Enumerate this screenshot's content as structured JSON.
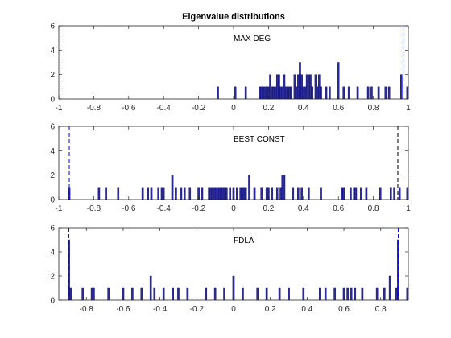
{
  "figure": {
    "title": "Eigenvalue distributions",
    "bar_color": "#2b2b9e",
    "bar_edge": "#0c0c4d",
    "vline_color_blue": "#0000ff",
    "vline_color_black": "#000000"
  },
  "chart_data": [
    {
      "type": "bar",
      "label": "MAX DEG",
      "xlim": [
        -1,
        1
      ],
      "ylim": [
        0,
        6
      ],
      "xticks": [
        -1,
        -0.8,
        -0.6,
        -0.4,
        -0.2,
        0,
        0.2,
        0.4,
        0.6,
        0.8,
        1
      ],
      "xtick_labels": [
        "-1",
        "-0.8",
        "-0.6",
        "-0.4",
        "-0.2",
        "0",
        "0.2",
        "0.4",
        "0.6",
        "0.8",
        "1"
      ],
      "yticks": [
        0,
        2,
        4,
        6
      ],
      "ytick_labels": [
        "0",
        "2",
        "4",
        "6"
      ],
      "bin_width": 0.01,
      "bars": [
        {
          "x": -0.09,
          "y": 1
        },
        {
          "x": 0.01,
          "y": 1
        },
        {
          "x": 0.07,
          "y": 1
        },
        {
          "x": 0.15,
          "y": 1
        },
        {
          "x": 0.16,
          "y": 1
        },
        {
          "x": 0.17,
          "y": 1
        },
        {
          "x": 0.18,
          "y": 1
        },
        {
          "x": 0.19,
          "y": 1
        },
        {
          "x": 0.2,
          "y": 1
        },
        {
          "x": 0.21,
          "y": 2
        },
        {
          "x": 0.22,
          "y": 1
        },
        {
          "x": 0.23,
          "y": 1
        },
        {
          "x": 0.24,
          "y": 1
        },
        {
          "x": 0.25,
          "y": 2
        },
        {
          "x": 0.26,
          "y": 2
        },
        {
          "x": 0.27,
          "y": 1
        },
        {
          "x": 0.28,
          "y": 1
        },
        {
          "x": 0.29,
          "y": 2
        },
        {
          "x": 0.3,
          "y": 1
        },
        {
          "x": 0.31,
          "y": 1
        },
        {
          "x": 0.32,
          "y": 1
        },
        {
          "x": 0.33,
          "y": 1
        },
        {
          "x": 0.35,
          "y": 2
        },
        {
          "x": 0.36,
          "y": 1
        },
        {
          "x": 0.37,
          "y": 2
        },
        {
          "x": 0.38,
          "y": 3
        },
        {
          "x": 0.39,
          "y": 2
        },
        {
          "x": 0.4,
          "y": 1
        },
        {
          "x": 0.41,
          "y": 1
        },
        {
          "x": 0.42,
          "y": 2
        },
        {
          "x": 0.43,
          "y": 2
        },
        {
          "x": 0.44,
          "y": 2
        },
        {
          "x": 0.45,
          "y": 1
        },
        {
          "x": 0.47,
          "y": 2
        },
        {
          "x": 0.48,
          "y": 1
        },
        {
          "x": 0.49,
          "y": 2
        },
        {
          "x": 0.5,
          "y": 1
        },
        {
          "x": 0.53,
          "y": 1
        },
        {
          "x": 0.55,
          "y": 1
        },
        {
          "x": 0.6,
          "y": 3
        },
        {
          "x": 0.63,
          "y": 1
        },
        {
          "x": 0.66,
          "y": 1
        },
        {
          "x": 0.71,
          "y": 1
        },
        {
          "x": 0.77,
          "y": 1
        },
        {
          "x": 0.79,
          "y": 1
        },
        {
          "x": 0.83,
          "y": 1
        },
        {
          "x": 0.87,
          "y": 1
        },
        {
          "x": 0.89,
          "y": 1
        },
        {
          "x": 0.96,
          "y": 2
        },
        {
          "x": 1.0,
          "y": 1
        }
      ],
      "vlines": [
        {
          "x": -0.97,
          "color": "blue"
        },
        {
          "x": 0.97,
          "color": "blue"
        }
      ]
    },
    {
      "type": "bar",
      "label": "BEST CONST",
      "xlim": [
        -1,
        1
      ],
      "ylim": [
        0,
        6
      ],
      "xticks": [
        -1,
        -0.8,
        -0.6,
        -0.4,
        -0.2,
        0,
        0.2,
        0.4,
        0.6,
        0.8,
        1
      ],
      "xtick_labels": [
        "-1",
        "-0.8",
        "-0.6",
        "-0.4",
        "-0.2",
        "0",
        "0.2",
        "0.4",
        "0.6",
        "0.8",
        "1"
      ],
      "yticks": [
        0,
        2,
        4,
        6
      ],
      "ytick_labels": [
        "0",
        "2",
        "4",
        "6"
      ],
      "bin_width": 0.01,
      "bars": [
        {
          "x": -0.94,
          "y": 1
        },
        {
          "x": -0.77,
          "y": 1
        },
        {
          "x": -0.73,
          "y": 1
        },
        {
          "x": -0.66,
          "y": 1
        },
        {
          "x": -0.52,
          "y": 1
        },
        {
          "x": -0.49,
          "y": 1
        },
        {
          "x": -0.47,
          "y": 1
        },
        {
          "x": -0.43,
          "y": 1
        },
        {
          "x": -0.41,
          "y": 1
        },
        {
          "x": -0.4,
          "y": 1
        },
        {
          "x": -0.35,
          "y": 2
        },
        {
          "x": -0.33,
          "y": 1
        },
        {
          "x": -0.3,
          "y": 1
        },
        {
          "x": -0.28,
          "y": 1
        },
        {
          "x": -0.25,
          "y": 1
        },
        {
          "x": -0.2,
          "y": 1
        },
        {
          "x": -0.18,
          "y": 1
        },
        {
          "x": -0.14,
          "y": 1
        },
        {
          "x": -0.13,
          "y": 1
        },
        {
          "x": -0.12,
          "y": 1
        },
        {
          "x": -0.11,
          "y": 1
        },
        {
          "x": -0.1,
          "y": 1
        },
        {
          "x": -0.09,
          "y": 1
        },
        {
          "x": -0.08,
          "y": 1
        },
        {
          "x": -0.07,
          "y": 1
        },
        {
          "x": -0.06,
          "y": 1
        },
        {
          "x": -0.05,
          "y": 1
        },
        {
          "x": -0.04,
          "y": 1
        },
        {
          "x": -0.02,
          "y": 1
        },
        {
          "x": 0.0,
          "y": 1
        },
        {
          "x": 0.02,
          "y": 1
        },
        {
          "x": 0.04,
          "y": 1
        },
        {
          "x": 0.05,
          "y": 1
        },
        {
          "x": 0.06,
          "y": 1
        },
        {
          "x": 0.07,
          "y": 1
        },
        {
          "x": 0.09,
          "y": 2
        },
        {
          "x": 0.12,
          "y": 1
        },
        {
          "x": 0.16,
          "y": 1
        },
        {
          "x": 0.19,
          "y": 1
        },
        {
          "x": 0.2,
          "y": 1
        },
        {
          "x": 0.22,
          "y": 1
        },
        {
          "x": 0.25,
          "y": 1
        },
        {
          "x": 0.27,
          "y": 1
        },
        {
          "x": 0.28,
          "y": 2
        },
        {
          "x": 0.29,
          "y": 2
        },
        {
          "x": 0.34,
          "y": 1
        },
        {
          "x": 0.37,
          "y": 1
        },
        {
          "x": 0.39,
          "y": 1
        },
        {
          "x": 0.43,
          "y": 1
        },
        {
          "x": 0.5,
          "y": 1
        },
        {
          "x": 0.62,
          "y": 1
        },
        {
          "x": 0.63,
          "y": 1
        },
        {
          "x": 0.67,
          "y": 1
        },
        {
          "x": 0.69,
          "y": 1
        },
        {
          "x": 0.7,
          "y": 1
        },
        {
          "x": 0.73,
          "y": 1
        },
        {
          "x": 0.76,
          "y": 1
        },
        {
          "x": 0.84,
          "y": 1
        },
        {
          "x": 0.9,
          "y": 1
        },
        {
          "x": 0.92,
          "y": 1
        },
        {
          "x": 0.95,
          "y": 1
        },
        {
          "x": 1.0,
          "y": 1
        }
      ],
      "vlines": [
        {
          "x": -0.94,
          "color": "blue"
        },
        {
          "x": 0.94,
          "color": "black"
        }
      ]
    },
    {
      "type": "bar",
      "label": "FDLA",
      "xlim": [
        -0.95,
        0.95
      ],
      "ylim": [
        0,
        6
      ],
      "xticks": [
        -0.8,
        -0.6,
        -0.4,
        -0.2,
        0,
        0.2,
        0.4,
        0.6,
        0.8
      ],
      "xtick_labels": [
        "-0.8",
        "-0.6",
        "-0.4",
        "-0.2",
        "0",
        "0.2",
        "0.4",
        "0.6",
        "0.8"
      ],
      "yticks": [
        0,
        2,
        4,
        6
      ],
      "ytick_labels": [
        "0",
        "2",
        "4",
        "6"
      ],
      "bin_width": 0.009,
      "bars": [
        {
          "x": -0.895,
          "y": 5
        },
        {
          "x": -0.886,
          "y": 1
        },
        {
          "x": -0.82,
          "y": 1
        },
        {
          "x": -0.77,
          "y": 1
        },
        {
          "x": -0.76,
          "y": 1
        },
        {
          "x": -0.68,
          "y": 1
        },
        {
          "x": -0.6,
          "y": 1
        },
        {
          "x": -0.55,
          "y": 1
        },
        {
          "x": -0.5,
          "y": 1
        },
        {
          "x": -0.45,
          "y": 2
        },
        {
          "x": -0.43,
          "y": 1
        },
        {
          "x": -0.38,
          "y": 1
        },
        {
          "x": -0.33,
          "y": 1
        },
        {
          "x": -0.3,
          "y": 1
        },
        {
          "x": -0.25,
          "y": 1
        },
        {
          "x": -0.15,
          "y": 1
        },
        {
          "x": -0.1,
          "y": 1
        },
        {
          "x": -0.05,
          "y": 1
        },
        {
          "x": 0.0,
          "y": 2
        },
        {
          "x": 0.05,
          "y": 1
        },
        {
          "x": 0.13,
          "y": 1
        },
        {
          "x": 0.18,
          "y": 1
        },
        {
          "x": 0.25,
          "y": 1
        },
        {
          "x": 0.3,
          "y": 1
        },
        {
          "x": 0.38,
          "y": 1
        },
        {
          "x": 0.47,
          "y": 1
        },
        {
          "x": 0.5,
          "y": 1
        },
        {
          "x": 0.55,
          "y": 1
        },
        {
          "x": 0.6,
          "y": 1
        },
        {
          "x": 0.62,
          "y": 1
        },
        {
          "x": 0.64,
          "y": 1
        },
        {
          "x": 0.66,
          "y": 1
        },
        {
          "x": 0.7,
          "y": 1
        },
        {
          "x": 0.78,
          "y": 1
        },
        {
          "x": 0.82,
          "y": 1
        },
        {
          "x": 0.85,
          "y": 2
        },
        {
          "x": 0.886,
          "y": 1
        },
        {
          "x": 0.895,
          "y": 5
        },
        {
          "x": 0.95,
          "y": 1
        }
      ],
      "vlines": [
        {
          "x": -0.895,
          "color": "blue"
        },
        {
          "x": 0.895,
          "color": "blue"
        }
      ]
    }
  ]
}
